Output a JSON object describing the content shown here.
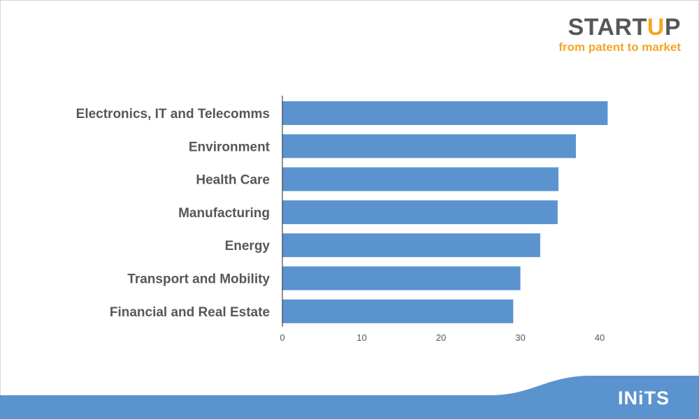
{
  "brand": {
    "logo_word_left": "START",
    "logo_word_bulb": "U",
    "logo_word_right": "P",
    "tagline": "from patent to market",
    "footer_logo": "INiTS",
    "accent": "#f5a623",
    "bar_color": "#5b93cf",
    "footer_color": "#5b93cf",
    "text_color": "#555759"
  },
  "chart_data": {
    "type": "bar",
    "orientation": "horizontal",
    "categories": [
      "Electronics, IT and Telecomms",
      "Environment",
      "Health Care",
      "Manufacturing",
      "Energy",
      "Transport and Mobility",
      "Financial and Real Estate"
    ],
    "values": [
      41,
      37,
      34.8,
      34.7,
      32.5,
      30,
      29.1
    ],
    "xlim": [
      0,
      43
    ],
    "xticks": [
      "0",
      "10",
      "20",
      "30",
      "40"
    ],
    "grid": false,
    "title": "",
    "xlabel": "",
    "ylabel": ""
  }
}
